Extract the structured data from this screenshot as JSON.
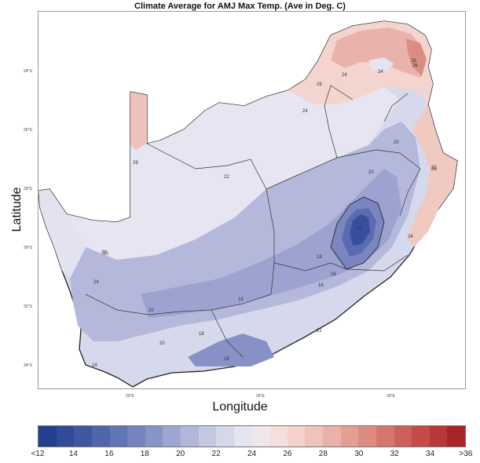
{
  "title": "Climate Average for AMJ Max Temp. (Ave in Deg. C)",
  "xlabel": "Longitude",
  "ylabel": "Latitude",
  "lat_ticks": [
    "24°S",
    "26°S",
    "28°S",
    "30°S",
    "32°S",
    "34°S"
  ],
  "lon_ticks": [
    "20°E",
    "25°E",
    "30°E"
  ],
  "contour_labels": [
    "24",
    "24",
    "26",
    "24",
    "26",
    "22",
    "20",
    "26",
    "20",
    "20",
    "22",
    "24",
    "18",
    "14",
    "16",
    "18",
    "16",
    "20",
    "18",
    "22",
    "24",
    "26",
    "20",
    "18",
    "18",
    "20",
    "26"
  ],
  "colorbar": {
    "labels": [
      "<12",
      "14",
      "16",
      "18",
      "20",
      "22",
      "24",
      "26",
      "28",
      "30",
      "32",
      "34",
      ">36"
    ],
    "colors": [
      "#243f8f",
      "#3d56a0",
      "#5e71b2",
      "#8490c4",
      "#a9b1d6",
      "#cfd3e8",
      "#ecebf3",
      "#f6dcd8",
      "#eebdb5",
      "#e39a90",
      "#d4716a",
      "#c24a47",
      "#a82428"
    ]
  }
}
